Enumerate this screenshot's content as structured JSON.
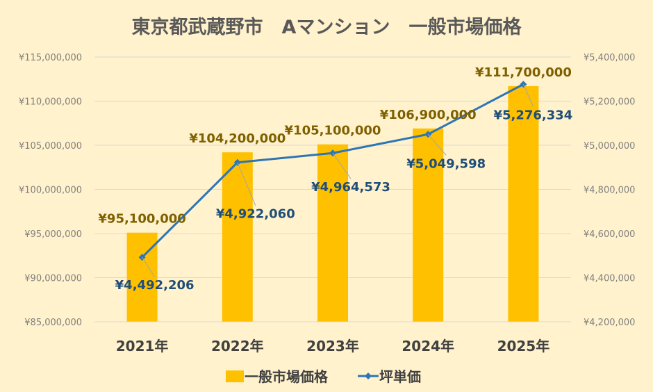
{
  "chart_data": {
    "type": "bar",
    "title": "東京都武蔵野市　Aマンション　一般市場価格",
    "categories": [
      "2021年",
      "2022年",
      "2023年",
      "2024年",
      "2025年"
    ],
    "series": [
      {
        "name": "一般市場価格",
        "type": "bar",
        "axis": "left",
        "color": "#ffc000",
        "values": [
          95100000,
          104200000,
          105100000,
          106900000,
          111700000
        ],
        "labels": [
          "¥95,100,000",
          "¥104,200,000",
          "¥105,100,000",
          "¥106,900,000",
          "¥111,700,000"
        ]
      },
      {
        "name": "坪単価",
        "type": "line",
        "axis": "right",
        "color": "#2e75b6",
        "marker": "diamond",
        "values": [
          4492206,
          4922060,
          4964573,
          5049598,
          5276334
        ],
        "labels": [
          "¥4,492,206",
          "¥4,922,060",
          "¥4,964,573",
          "¥5,049,598",
          "¥5,276,334"
        ]
      }
    ],
    "y_left": {
      "min": 85000000,
      "max": 115000000,
      "step": 5000000,
      "ticks": [
        "¥85,000,000",
        "¥90,000,000",
        "¥95,000,000",
        "¥100,000,000",
        "¥105,000,000",
        "¥110,000,000",
        "¥115,000,000"
      ]
    },
    "y_right": {
      "min": 4200000,
      "max": 5400000,
      "step": 200000,
      "ticks": [
        "¥4,200,000",
        "¥4,400,000",
        "¥4,600,000",
        "¥4,800,000",
        "¥5,000,000",
        "¥5,200,000",
        "¥5,400,000"
      ]
    },
    "grid": true,
    "legend": "bottom",
    "background": "#fff2cc",
    "label_color_bar": "#7f6000",
    "label_color_line": "#1f4e79"
  }
}
